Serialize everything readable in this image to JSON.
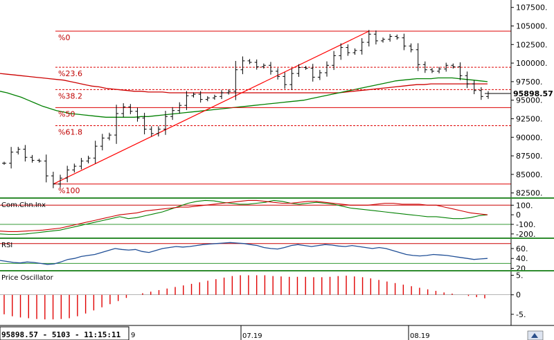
{
  "status_bar": {
    "text": "95898.57 - 5103 - 11:15:11",
    "trailing": "9"
  },
  "chart_data": [
    {
      "type": "ohlc",
      "panel": "price",
      "y_ticks": [
        82500,
        85000,
        87500,
        90000,
        92500,
        95000,
        97500,
        100000,
        102500,
        105000,
        107500
      ],
      "y_tick_labels": [
        "82500.",
        "85000.",
        "87500.",
        "90000.",
        "92500.",
        "95000.",
        "97500.",
        "100000.",
        "102500.",
        "105000.",
        "107500."
      ],
      "ylim": [
        82000,
        108500
      ],
      "last_price_label": "95898.57",
      "last_price": 95898.57,
      "closes": [
        86500,
        88000,
        88400,
        87300,
        86900,
        86800,
        84800,
        83700,
        84500,
        85600,
        86100,
        86800,
        87200,
        88800,
        89900,
        90300,
        93200,
        94100,
        93500,
        92600,
        91100,
        90500,
        91100,
        92800,
        93600,
        94300,
        95600,
        95800,
        95100,
        95300,
        95500,
        96000,
        96200,
        99100,
        100300,
        100100,
        99500,
        99700,
        98900,
        98200,
        97100,
        98600,
        99400,
        99300,
        98100,
        98700,
        99700,
        101000,
        102100,
        101400,
        101700,
        102800,
        103900,
        103000,
        103200,
        103600,
        103400,
        102300,
        101800,
        99800,
        99100,
        98900,
        99200,
        99700,
        99500,
        98300,
        97200,
        96300,
        95500,
        95900
      ],
      "ma_long": [
        98600,
        98500,
        98400,
        98300,
        98200,
        98100,
        98000,
        97900,
        97800,
        97700,
        97500,
        97300,
        97100,
        96900,
        96800,
        96600,
        96500,
        96400,
        96300,
        96200,
        96200,
        96100,
        96100,
        96100,
        96000,
        96000,
        96000,
        96000,
        96000,
        96000,
        96000,
        96000,
        96000,
        96000,
        96000,
        96000,
        96000,
        96000,
        96000,
        96000,
        96000,
        96000,
        96000,
        96000,
        96000,
        96000,
        96000,
        96000,
        96000,
        96100,
        96200,
        96300,
        96400,
        96500,
        96600,
        96700,
        96800,
        96900,
        97000,
        97100,
        97100,
        97200,
        97200,
        97200,
        97200,
        97200,
        97200,
        97200,
        97200,
        97200
      ],
      "ma_short": [
        96200,
        96000,
        95700,
        95400,
        95000,
        94600,
        94200,
        93900,
        93600,
        93400,
        93200,
        93100,
        93000,
        92900,
        92800,
        92700,
        92700,
        92700,
        92700,
        92700,
        92800,
        92800,
        92900,
        93000,
        93100,
        93200,
        93300,
        93400,
        93500,
        93600,
        93700,
        93800,
        93900,
        94000,
        94100,
        94200,
        94300,
        94400,
        94500,
        94600,
        94700,
        94800,
        94900,
        95000,
        95200,
        95400,
        95600,
        95800,
        96000,
        96200,
        96400,
        96600,
        96800,
        97000,
        97200,
        97400,
        97600,
        97700,
        97800,
        97900,
        97900,
        97900,
        98000,
        98000,
        98000,
        97900,
        97800,
        97700,
        97600,
        97500
      ],
      "trendline": {
        "from_index": 7,
        "from_value": 83700,
        "to_index": 52,
        "to_value": 104300
      },
      "fibonacci": {
        "high": 104300,
        "low": 83700,
        "levels": [
          {
            "label": "%0",
            "ratio": 0
          },
          {
            "label": "%23.6",
            "ratio": 0.236
          },
          {
            "label": "%38.2",
            "ratio": 0.382
          },
          {
            "label": "%50",
            "ratio": 0.5
          },
          {
            "label": "%61.8",
            "ratio": 0.618
          },
          {
            "label": "%100",
            "ratio": 1
          }
        ]
      }
    },
    {
      "type": "line",
      "panel": "cci",
      "title": "Com.Chn.Inx",
      "y_tick_labels": [
        "100.",
        "0",
        "-100.",
        "-200."
      ],
      "y_ticks": [
        100,
        0,
        -100,
        -200
      ],
      "ylim": [
        -230,
        160
      ],
      "levels": [
        100,
        -100
      ],
      "series_a": [
        -170,
        -175,
        -175,
        -170,
        -165,
        -160,
        -150,
        -140,
        -120,
        -100,
        -80,
        -60,
        -40,
        -20,
        0,
        10,
        20,
        40,
        50,
        60,
        70,
        80,
        80,
        90,
        100,
        110,
        120,
        130,
        140,
        150,
        150,
        140,
        130,
        120,
        120,
        130,
        140,
        140,
        130,
        120,
        110,
        100,
        100,
        100,
        110,
        120,
        120,
        110,
        110,
        110,
        100,
        100,
        80,
        60,
        40,
        20,
        10,
        0
      ],
      "series_b": [
        -200,
        -205,
        -205,
        -200,
        -190,
        -180,
        -170,
        -160,
        -140,
        -120,
        -100,
        -80,
        -60,
        -40,
        -20,
        -40,
        -30,
        -10,
        10,
        30,
        60,
        90,
        120,
        140,
        150,
        145,
        130,
        120,
        110,
        110,
        120,
        130,
        150,
        140,
        120,
        110,
        120,
        130,
        120,
        110,
        90,
        70,
        60,
        50,
        40,
        30,
        20,
        10,
        0,
        -10,
        -20,
        -20,
        -30,
        -40,
        -40,
        -30,
        -10,
        0
      ]
    },
    {
      "type": "line",
      "panel": "rsi",
      "title": "RSI",
      "y_tick_labels": [
        "60.",
        "40.",
        "20."
      ],
      "y_ticks": [
        60,
        40,
        20
      ],
      "ylim": [
        18,
        78
      ],
      "levels": [
        70,
        30
      ],
      "values": [
        36,
        34,
        32,
        31,
        33,
        32,
        30,
        28,
        29,
        33,
        38,
        40,
        44,
        46,
        48,
        52,
        56,
        60,
        58,
        57,
        58,
        54,
        52,
        56,
        60,
        62,
        64,
        63,
        64,
        66,
        68,
        69,
        70,
        71,
        72,
        71,
        70,
        68,
        66,
        62,
        60,
        59,
        62,
        66,
        68,
        66,
        64,
        66,
        68,
        67,
        65,
        64,
        66,
        64,
        62,
        60,
        62,
        60,
        56,
        52,
        48,
        46,
        45,
        46,
        48,
        47,
        46,
        44,
        42,
        40,
        38,
        39,
        40
      ]
    },
    {
      "type": "bar",
      "panel": "price_oscillator",
      "title": "Price Oscillator",
      "y_tick_labels": [
        "5.",
        "0",
        "-5."
      ],
      "y_ticks": [
        5,
        0,
        -5
      ],
      "ylim": [
        -7.5,
        5.8
      ],
      "values": [
        -5,
        -5.5,
        -5.8,
        -6,
        -6.2,
        -6.3,
        -6.3,
        -6.2,
        -6,
        -5.5,
        -4.8,
        -4,
        -3.2,
        -2.4,
        -1.6,
        -0.8,
        0,
        0.4,
        0.8,
        1.2,
        1.6,
        2,
        2.4,
        2.8,
        3.2,
        3.6,
        4,
        4.4,
        4.8,
        5,
        5,
        5,
        5,
        4.8,
        4.7,
        4.6,
        4.6,
        4.6,
        4.5,
        4.5,
        4.6,
        4.8,
        4.9,
        4.7,
        4.5,
        4.2,
        3.8,
        3.4,
        3,
        2.6,
        2.2,
        1.8,
        1.4,
        1,
        0.6,
        0.3,
        0,
        -0.3,
        -0.6,
        -0.9
      ],
      "date_labels": [
        {
          "label": "07.19",
          "index": 0
        },
        {
          "label": "08.19",
          "index": 1
        }
      ]
    }
  ],
  "colors": {
    "fib_red": "#dd0000",
    "trend_red": "#ff0000",
    "ma_green": "#008000",
    "ma_red": "#cc0000",
    "rsi_blue": "#1f4e96",
    "osc_red": "#e00000",
    "grid_green": "#339933",
    "bar_black": "#000000"
  }
}
